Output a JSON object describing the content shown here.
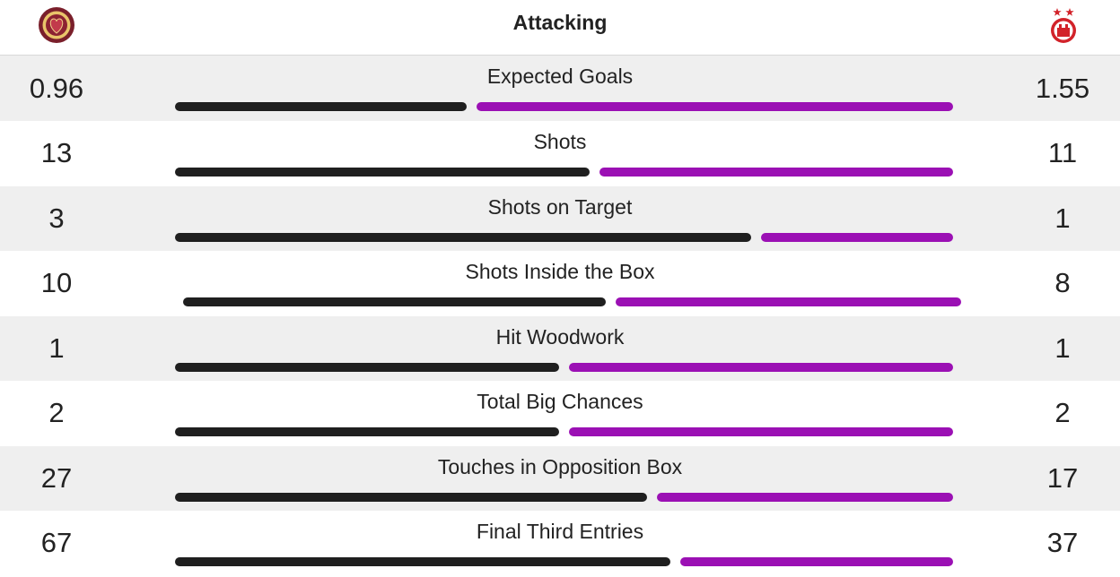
{
  "header": {
    "title": "Attacking",
    "home_crest_icon": "hearts-crest-icon",
    "away_crest_icon": "aberdeen-crest-icon"
  },
  "colors": {
    "home_bar": "#1f1f1f",
    "away_bar": "#9b10b4",
    "shaded_row": "#efefef"
  },
  "stats": [
    {
      "label": "Expected Goals",
      "home": "0.96",
      "away": "1.55",
      "home_share": 0.38
    },
    {
      "label": "Shots",
      "home": "13",
      "away": "11",
      "home_share": 0.54
    },
    {
      "label": "Shots on Target",
      "home": "3",
      "away": "1",
      "home_share": 0.75
    },
    {
      "label": "Shots Inside the Box",
      "home": "10",
      "away": "8",
      "home_share": 0.55
    },
    {
      "label": "Hit Woodwork",
      "home": "1",
      "away": "1",
      "home_share": 0.5
    },
    {
      "label": "Total Big Chances",
      "home": "2",
      "away": "2",
      "home_share": 0.5
    },
    {
      "label": "Touches in Opposition Box",
      "home": "27",
      "away": "17",
      "home_share": 0.615
    },
    {
      "label": "Final Third Entries",
      "home": "67",
      "away": "37",
      "home_share": 0.645
    }
  ]
}
